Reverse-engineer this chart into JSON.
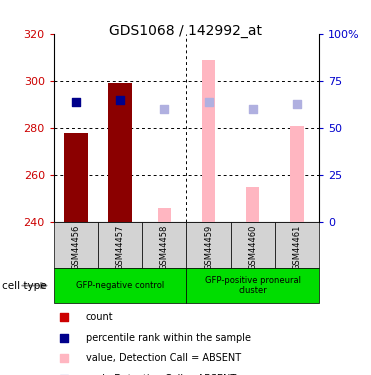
{
  "title": "GDS1068 / 142992_at",
  "samples": [
    "GSM44456",
    "GSM44457",
    "GSM44458",
    "GSM44459",
    "GSM44460",
    "GSM44461"
  ],
  "ylim": [
    240,
    320
  ],
  "yticks": [
    240,
    260,
    280,
    300,
    320
  ],
  "right_ylim": [
    0,
    100
  ],
  "right_yticks": [
    0,
    25,
    50,
    75,
    100
  ],
  "right_yticklabels": [
    "0",
    "25",
    "50",
    "75",
    "100%"
  ],
  "bar_bottom": 240,
  "red_bars": {
    "GSM44456": 278,
    "GSM44457": 299,
    "GSM44458": null,
    "GSM44459": null,
    "GSM44460": null,
    "GSM44461": null
  },
  "pink_bars": {
    "GSM44456": null,
    "GSM44457": null,
    "GSM44458": 246,
    "GSM44459": 309,
    "GSM44460": 255,
    "GSM44461": 281
  },
  "blue_squares": {
    "GSM44456": 291,
    "GSM44457": 292,
    "GSM44458": null,
    "GSM44459": null,
    "GSM44460": null,
    "GSM44461": null
  },
  "lavender_squares": {
    "GSM44456": null,
    "GSM44457": null,
    "GSM44458": 288,
    "GSM44459": 291,
    "GSM44460": 288,
    "GSM44461": 290
  },
  "legend_items": [
    {
      "label": "count",
      "color": "#cc0000"
    },
    {
      "label": "percentile rank within the sample",
      "color": "#00008b"
    },
    {
      "label": "value, Detection Call = ABSENT",
      "color": "#ffb6c1"
    },
    {
      "label": "rank, Detection Call = ABSENT",
      "color": "#b0b0e0"
    }
  ],
  "cell_type_label": "cell type",
  "group_defs": [
    {
      "start": 0,
      "end": 2,
      "label": "GFP-negative control"
    },
    {
      "start": 3,
      "end": 5,
      "label": "GFP-positive proneural\ncluster"
    }
  ],
  "red_color": "#8b0000",
  "pink_color": "#ffb6c1",
  "blue_color": "#00008b",
  "lavender_color": "#b0b0e0",
  "bar_width": 0.55,
  "pink_bar_width": 0.3,
  "bg_color": "#ffffff",
  "plot_bg_color": "#ffffff",
  "ylabel_color": "#cc0000",
  "right_ylabel_color": "#0000cc",
  "gray_bg": "#d3d3d3",
  "green_bg": "#00dd00",
  "title_fontsize": 10,
  "tick_fontsize": 8,
  "label_fontsize": 6,
  "legend_fontsize": 7
}
